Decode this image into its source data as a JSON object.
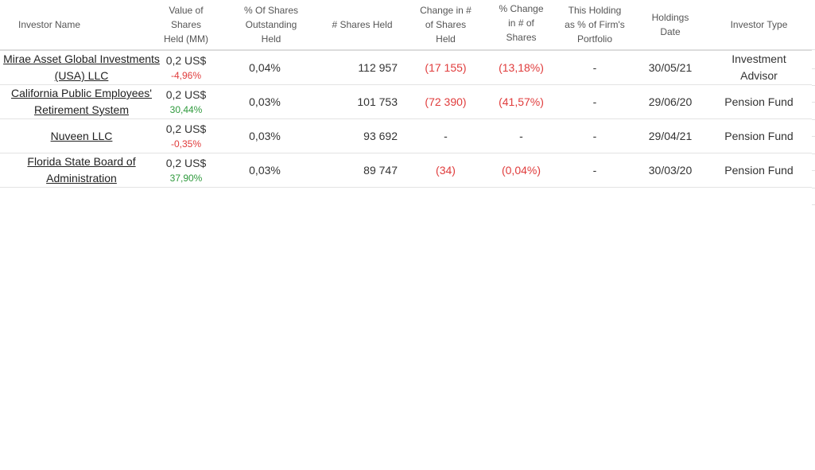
{
  "table": {
    "headers": {
      "investor_name": "Investor Name",
      "value_held": "Value of Shares Held (MM)",
      "pct_outstanding": "% Of Shares Outstanding Held",
      "shares_held": "# Shares Held",
      "change_shares": "Change in # of Shares Held",
      "pct_change_shares": "% Change in # of Shares Held",
      "portfolio_pct": "This Holding as % of Firm's Portfolio",
      "holdings_date": "Holdings Date",
      "investor_type": "Investor Type"
    },
    "rows": [
      {
        "investor_name": "Mirae Asset Global Investments (USA) LLC",
        "value_held": "0,2 US$",
        "value_change": "-4,96%",
        "value_change_dir": "neg",
        "pct_outstanding": "0,04%",
        "shares_held": "112 957",
        "change_shares": "(17 155)",
        "pct_change_shares": "(13,18%)",
        "portfolio_pct": "-",
        "holdings_date": "30/05/21",
        "investor_type": "Investment Advisor"
      },
      {
        "investor_name": "California Public Employees' Retirement System",
        "value_held": "0,2 US$",
        "value_change": "30,44%",
        "value_change_dir": "pos",
        "pct_outstanding": "0,03%",
        "shares_held": "101 753",
        "change_shares": "(72 390)",
        "pct_change_shares": "(41,57%)",
        "portfolio_pct": "-",
        "holdings_date": "29/06/20",
        "investor_type": "Pension Fund"
      },
      {
        "investor_name": "Nuveen LLC",
        "value_held": "0,2 US$",
        "value_change": "-0,35%",
        "value_change_dir": "neg",
        "pct_outstanding": "0,03%",
        "shares_held": "93 692",
        "change_shares": "-",
        "pct_change_shares": "-",
        "portfolio_pct": "-",
        "holdings_date": "29/04/21",
        "investor_type": "Pension Fund"
      },
      {
        "investor_name": "Florida State Board of Administration",
        "value_held": "0,2 US$",
        "value_change": "37,90%",
        "value_change_dir": "pos",
        "pct_outstanding": "0,03%",
        "shares_held": "89 747",
        "change_shares": "(34)",
        "pct_change_shares": "(0,04%)",
        "portfolio_pct": "-",
        "holdings_date": "30/03/20",
        "investor_type": "Pension Fund"
      }
    ]
  },
  "colors": {
    "negative": "#e03c3c",
    "positive": "#2f9a3d",
    "header_text": "#555555",
    "body_text": "#333333"
  }
}
